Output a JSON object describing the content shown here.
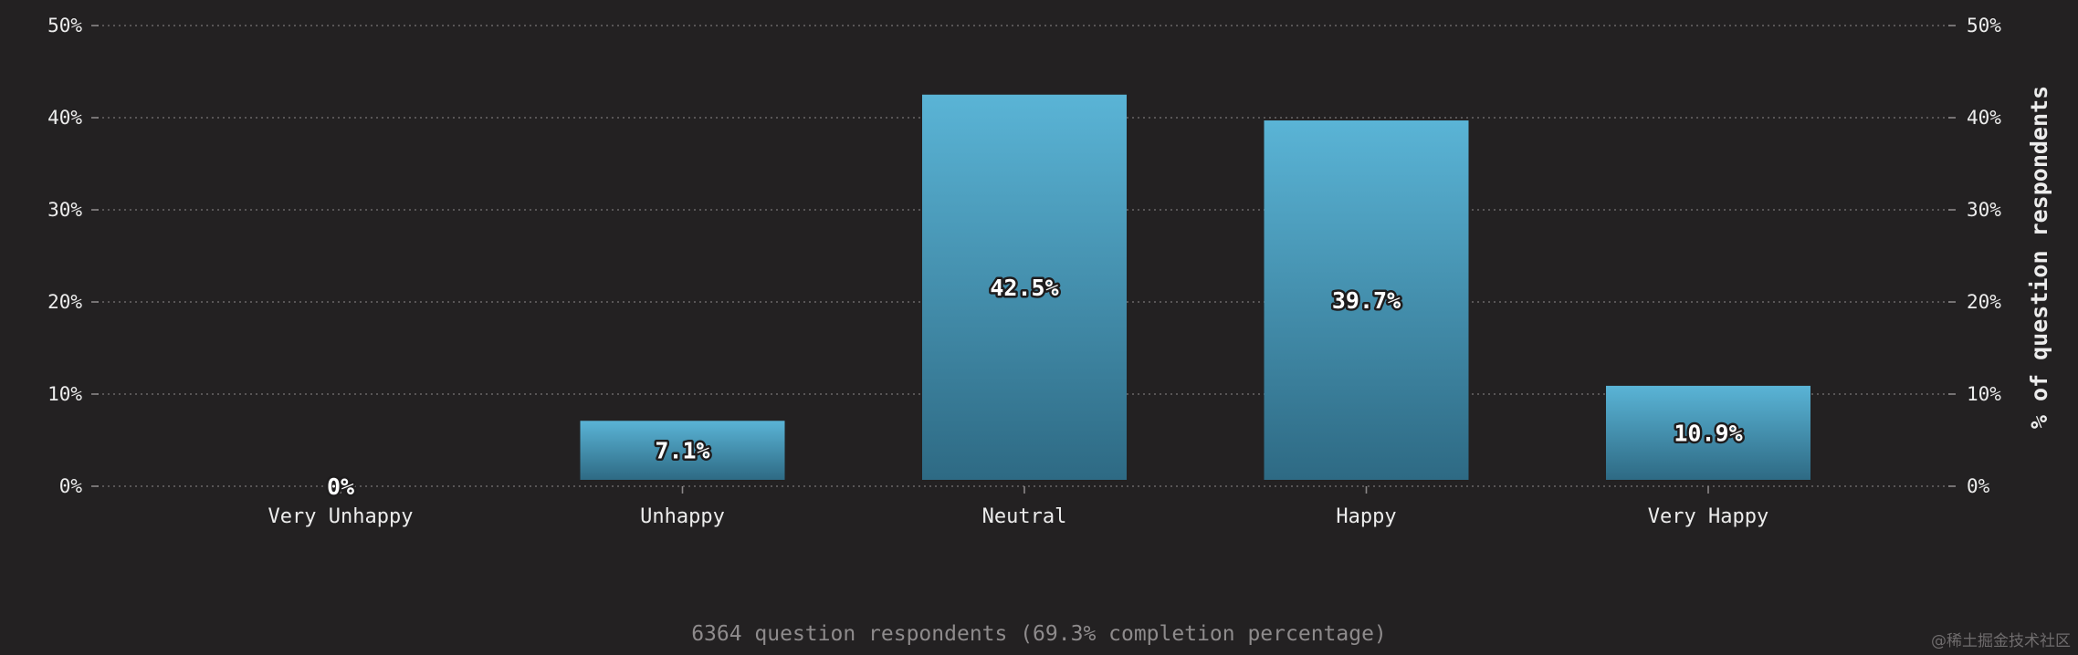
{
  "chart_data": {
    "type": "bar",
    "categories": [
      "Very Unhappy",
      "Unhappy",
      "Neutral",
      "Happy",
      "Very Happy"
    ],
    "values": [
      0,
      7.1,
      42.5,
      39.7,
      10.9
    ],
    "value_labels": [
      "0%",
      "7.1%",
      "42.5%",
      "39.7%",
      "10.9%"
    ],
    "ylabel": "% of question respondents",
    "ylim": [
      0,
      50
    ],
    "yticks": [
      0,
      10,
      20,
      30,
      40,
      50
    ],
    "ytick_labels": [
      "0%",
      "10%",
      "20%",
      "30%",
      "40%",
      "50%"
    ],
    "grid": true,
    "y_axis_sides": "both",
    "bar_color_top": "#5ab4d6",
    "bar_color_bottom": "#2e6a84"
  },
  "footer": {
    "note": "6364 question respondents (69.3% completion percentage)"
  },
  "watermark": {
    "text": "@稀土掘金技术社区"
  },
  "colors": {
    "background": "#232122",
    "text": "#ececec",
    "footer_text": "#8e8b8c"
  }
}
